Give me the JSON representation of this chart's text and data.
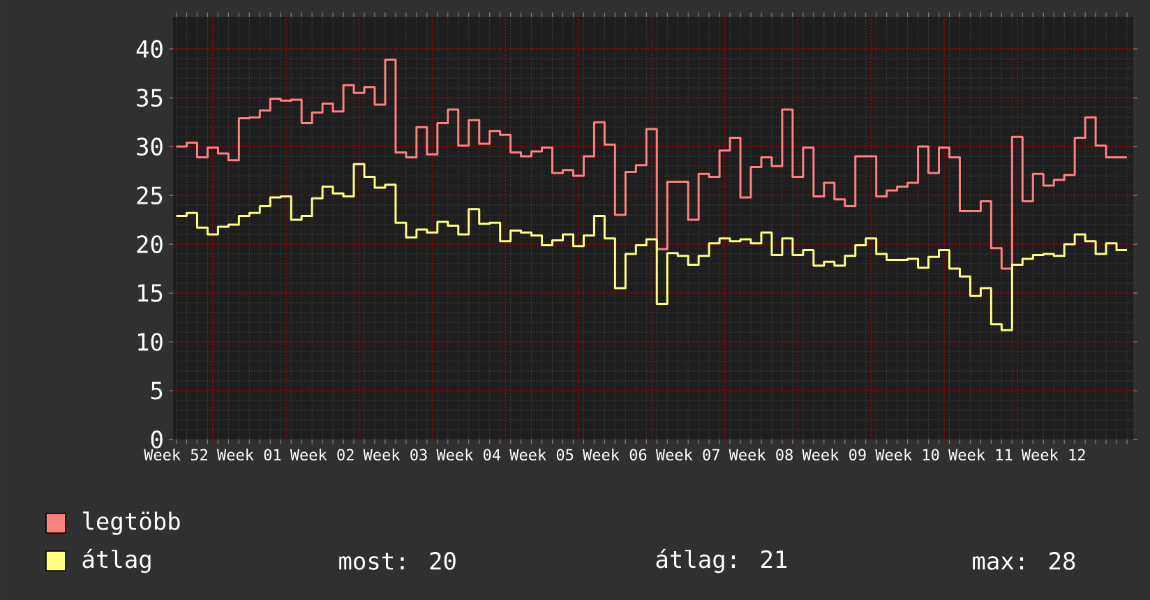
{
  "chart_data": {
    "type": "step",
    "categories": [
      "Week 52",
      null,
      null,
      null,
      null,
      null,
      null,
      "Week 01",
      null,
      null,
      null,
      null,
      null,
      null,
      "Week 02",
      null,
      null,
      null,
      null,
      null,
      null,
      "Week 03",
      null,
      null,
      null,
      null,
      null,
      null,
      "Week 04",
      null,
      null,
      null,
      null,
      null,
      null,
      "Week 05",
      null,
      null,
      null,
      null,
      null,
      null,
      "Week 06",
      null,
      null,
      null,
      null,
      null,
      null,
      "Week 07",
      null,
      null,
      null,
      null,
      null,
      null,
      "Week 08",
      null,
      null,
      null,
      null,
      null,
      null,
      "Week 09",
      null,
      null,
      null,
      null,
      null,
      null,
      "Week 10",
      null,
      null,
      null,
      null,
      null,
      null,
      "Week 11",
      null,
      null,
      null,
      null,
      null,
      null,
      "Week 12",
      null,
      null,
      null,
      null,
      null,
      null,
      null
    ],
    "series": [
      {
        "name": "legtöbb",
        "color": "#ff8080",
        "values": [
          30.0,
          30.4,
          28.9,
          29.9,
          29.3,
          28.6,
          32.9,
          33.0,
          33.7,
          34.9,
          34.7,
          34.8,
          32.4,
          33.5,
          34.4,
          33.6,
          36.3,
          35.5,
          36.1,
          34.3,
          38.9,
          29.4,
          28.9,
          32.0,
          29.2,
          32.4,
          33.8,
          30.1,
          32.7,
          30.3,
          31.6,
          31.2,
          29.4,
          29.0,
          29.5,
          29.9,
          27.3,
          27.6,
          27.0,
          29.0,
          32.5,
          30.2,
          23.0,
          27.4,
          28.1,
          31.8,
          19.5,
          26.4,
          26.4,
          22.5,
          27.2,
          26.9,
          29.6,
          30.9,
          24.8,
          27.9,
          28.9,
          28.0,
          33.8,
          26.9,
          29.9,
          24.9,
          26.3,
          24.6,
          23.9,
          29.0,
          29.0,
          24.9,
          25.5,
          25.9,
          26.3,
          30.0,
          27.3,
          29.9,
          28.9,
          23.4,
          23.4,
          24.4,
          19.6,
          17.5,
          31.0,
          24.4,
          27.2,
          26.0,
          26.6,
          27.1,
          30.9,
          33.0,
          30.1,
          28.9,
          28.9,
          28.9
        ]
      },
      {
        "name": "átlag",
        "color": "#ffff80",
        "values": [
          22.9,
          23.2,
          21.7,
          21.0,
          21.8,
          22.0,
          22.9,
          23.2,
          23.9,
          24.8,
          24.9,
          22.5,
          22.9,
          24.7,
          25.9,
          25.2,
          24.9,
          28.2,
          26.9,
          25.8,
          26.1,
          22.2,
          20.7,
          21.5,
          21.2,
          22.3,
          21.9,
          21.0,
          23.6,
          22.1,
          22.2,
          20.3,
          21.4,
          21.2,
          20.9,
          19.9,
          20.4,
          21.0,
          19.8,
          20.9,
          22.9,
          20.6,
          15.5,
          19.0,
          19.9,
          20.5,
          13.9,
          19.1,
          18.8,
          17.9,
          18.8,
          20.1,
          20.6,
          20.3,
          20.5,
          20.1,
          21.2,
          18.9,
          20.6,
          18.9,
          19.4,
          17.8,
          18.2,
          17.8,
          18.8,
          19.9,
          20.6,
          19.0,
          18.4,
          18.4,
          18.5,
          17.6,
          18.7,
          19.4,
          17.5,
          16.7,
          14.7,
          15.5,
          11.8,
          11.2,
          17.9,
          18.5,
          18.9,
          19.0,
          18.8,
          20.0,
          21.0,
          20.3,
          19.0,
          20.1,
          19.4,
          19.4
        ]
      }
    ],
    "ylim": [
      0,
      43.3
    ],
    "yticks": [
      0,
      5,
      10,
      15,
      20,
      25,
      30,
      35,
      40
    ],
    "grid": true,
    "legend": "bottom left",
    "annotations": [
      "most: 20",
      "átlag: 21",
      "max: 28"
    ]
  }
}
